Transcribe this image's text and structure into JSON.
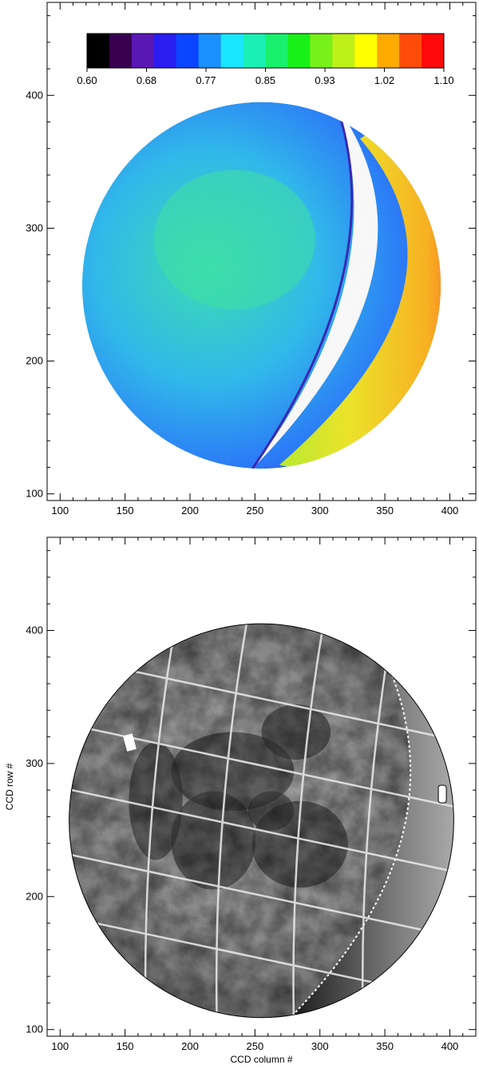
{
  "chart_data": [
    {
      "type": "heatmap",
      "title": "",
      "xlabel": "",
      "ylabel": "",
      "xlim": [
        90,
        420
      ],
      "ylim": [
        95,
        470
      ],
      "xticks": [
        "100",
        "150",
        "200",
        "250",
        "300",
        "350",
        "400"
      ],
      "yticks": [
        "100",
        "200",
        "300",
        "400"
      ],
      "colorbar": {
        "colors": [
          "#000000",
          "#3a0050",
          "#5a18b4",
          "#2a1ef0",
          "#0a46ff",
          "#1a90ff",
          "#19e6ff",
          "#1af0b4",
          "#19f06e",
          "#19f019",
          "#78f019",
          "#bef019",
          "#ffff00",
          "#ffaa00",
          "#ff4b0a",
          "#ff0a0a"
        ],
        "tick_labels": [
          "0.60",
          "0.68",
          "0.77",
          "0.85",
          "0.93",
          "1.02",
          "1.10"
        ],
        "range": [
          0.6,
          1.1
        ]
      },
      "disk": {
        "cx": 255,
        "cy": 257,
        "r": 138
      },
      "bright_region_color": "#e8d020",
      "dark_region_color": "#2db8f0"
    },
    {
      "type": "heatmap",
      "title": "",
      "xlabel": "CCD column #",
      "ylabel": "CCD row #",
      "xlim": [
        90,
        420
      ],
      "ylim": [
        95,
        470
      ],
      "xticks": [
        "100",
        "150",
        "200",
        "250",
        "300",
        "350",
        "400"
      ],
      "yticks": [
        "100",
        "200",
        "300",
        "400"
      ],
      "colormap": "grayscale",
      "disk": {
        "cx": 255,
        "cy": 257,
        "r": 148
      }
    }
  ]
}
